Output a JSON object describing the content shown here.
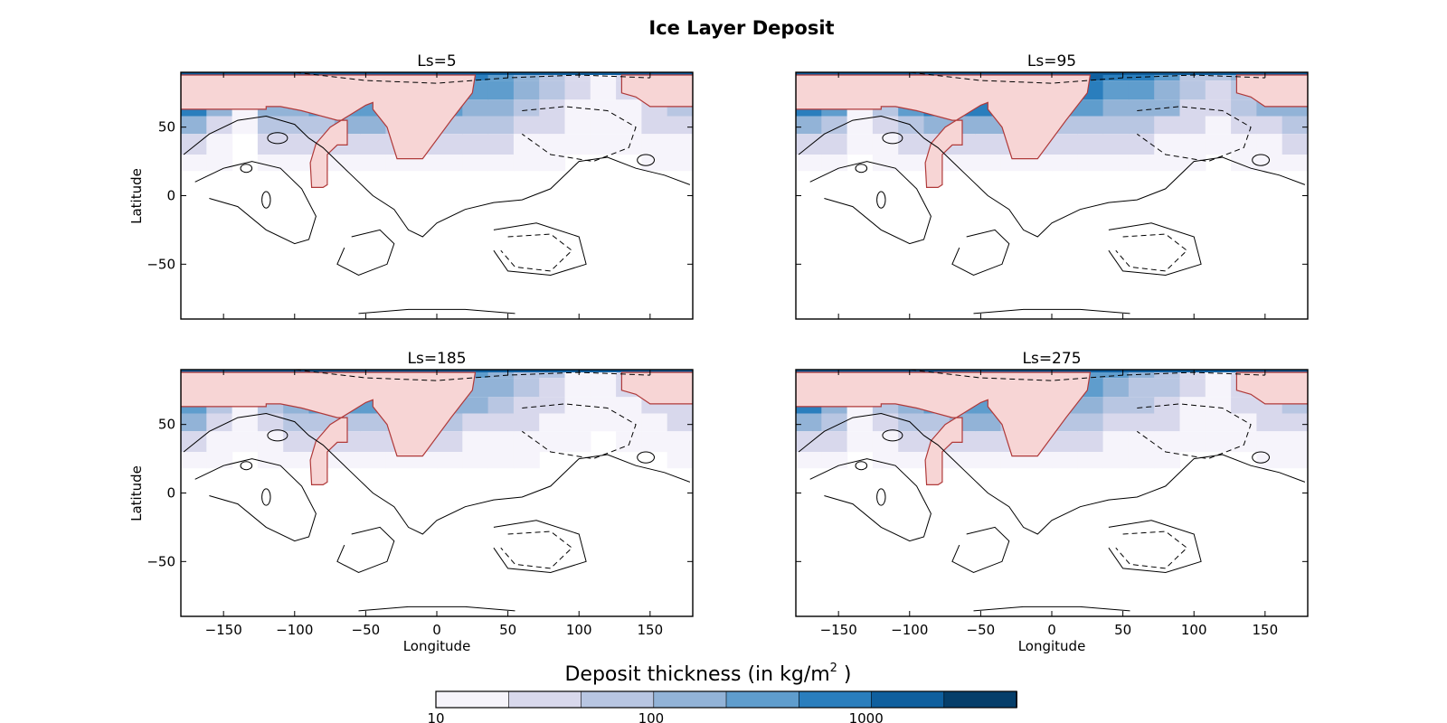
{
  "chart_data": {
    "type": "heatmap",
    "title": "Ice Layer Deposit",
    "xlabel": "Longitude",
    "ylabel": "Latitude",
    "xlim": [
      -180,
      180
    ],
    "ylim": [
      -90,
      90
    ],
    "xticks": [
      -150,
      -100,
      -50,
      0,
      50,
      100,
      150
    ],
    "yticks": [
      50,
      0,
      -50
    ],
    "grid": false,
    "panels": [
      {
        "subtitle": "Ls=5",
        "north_band": [
          0.95,
          0.55,
          0.05,
          0.6,
          0.7,
          0.8,
          0.85,
          0.85,
          0.8,
          0.8,
          0.75,
          0.7,
          0.6,
          0.45,
          0.3,
          0.15,
          0.1,
          0.15,
          0.3,
          0.45
        ]
      },
      {
        "subtitle": "Ls=95",
        "north_band": [
          0.95,
          0.75,
          0.1,
          0.5,
          0.8,
          0.9,
          0.9,
          0.9,
          0.9,
          0.85,
          0.8,
          0.75,
          0.7,
          0.65,
          0.55,
          0.35,
          0.25,
          0.4,
          0.55,
          0.6
        ]
      },
      {
        "subtitle": "Ls=185",
        "north_band": [
          0.85,
          0.5,
          0.1,
          0.4,
          0.6,
          0.75,
          0.8,
          0.8,
          0.7,
          0.65,
          0.6,
          0.55,
          0.45,
          0.35,
          0.25,
          0.1,
          0.05,
          0.15,
          0.25,
          0.35
        ]
      },
      {
        "subtitle": "Ls=275",
        "north_band": [
          0.9,
          0.6,
          0.1,
          0.45,
          0.7,
          0.8,
          0.85,
          0.85,
          0.8,
          0.75,
          0.7,
          0.6,
          0.5,
          0.4,
          0.3,
          0.15,
          0.1,
          0.2,
          0.35,
          0.45
        ]
      }
    ],
    "colorbar": {
      "label_prefix": "Deposit thickness (in kg/m",
      "label_exponent": "2",
      "label_suffix": " )",
      "scale": "log",
      "range": [
        10,
        5000
      ],
      "tick_labels": [
        "10",
        "100",
        "1000"
      ],
      "colors": [
        "#f6f4fb",
        "#d8d8ec",
        "#b8c6e2",
        "#92b3d7",
        "#5f9dcd",
        "#2a7ebd",
        "#0f5f9e",
        "#053e6a"
      ]
    },
    "mask_color": "#f7d5d5"
  }
}
